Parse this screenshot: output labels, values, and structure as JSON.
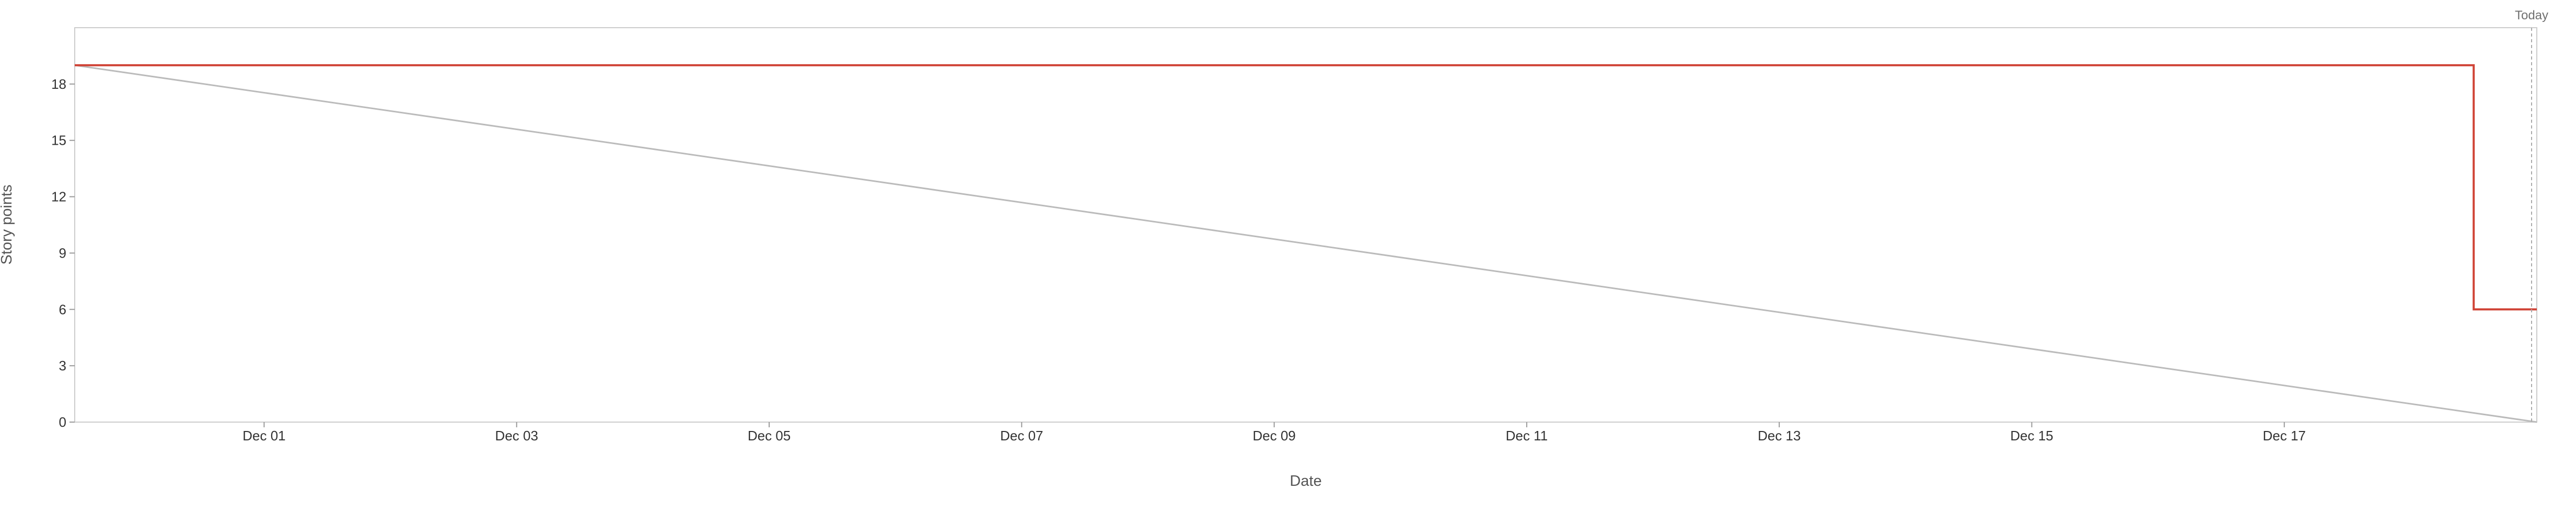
{
  "chart_data": {
    "type": "line",
    "title": "",
    "xlabel": "Date",
    "ylabel": "Story points",
    "x_range": [
      "2025-11-29 12:00",
      "2025-12-19"
    ],
    "ylim": [
      0,
      21
    ],
    "y_ticks": [
      0,
      3,
      6,
      9,
      12,
      15,
      18
    ],
    "x_ticks": [
      {
        "date": "2025-12-01",
        "label": "Dec 01"
      },
      {
        "date": "2025-12-03",
        "label": "Dec 03"
      },
      {
        "date": "2025-12-05",
        "label": "Dec 05"
      },
      {
        "date": "2025-12-07",
        "label": "Dec 07"
      },
      {
        "date": "2025-12-09",
        "label": "Dec 09"
      },
      {
        "date": "2025-12-11",
        "label": "Dec 11"
      },
      {
        "date": "2025-12-13",
        "label": "Dec 13"
      },
      {
        "date": "2025-12-15",
        "label": "Dec 15"
      },
      {
        "date": "2025-12-17",
        "label": "Dec 17"
      }
    ],
    "today": {
      "date": "2025-12-19",
      "label": "Today"
    },
    "grid": false,
    "legend": "none",
    "series": [
      {
        "role": "guideline",
        "color": "#bbbbbb",
        "step": false,
        "points": [
          {
            "x": "2025-11-29 12:00",
            "y": 19
          },
          {
            "x": "2025-12-19",
            "y": 0
          }
        ]
      },
      {
        "role": "remaining",
        "color": "#d04437",
        "step": true,
        "points": [
          {
            "x": "2025-11-29 12:00",
            "y": 19
          },
          {
            "x": "2025-12-18 12:00",
            "y": 19
          },
          {
            "x": "2025-12-18 12:00",
            "y": 6
          },
          {
            "x": "2025-12-19",
            "y": 6
          }
        ]
      }
    ]
  }
}
